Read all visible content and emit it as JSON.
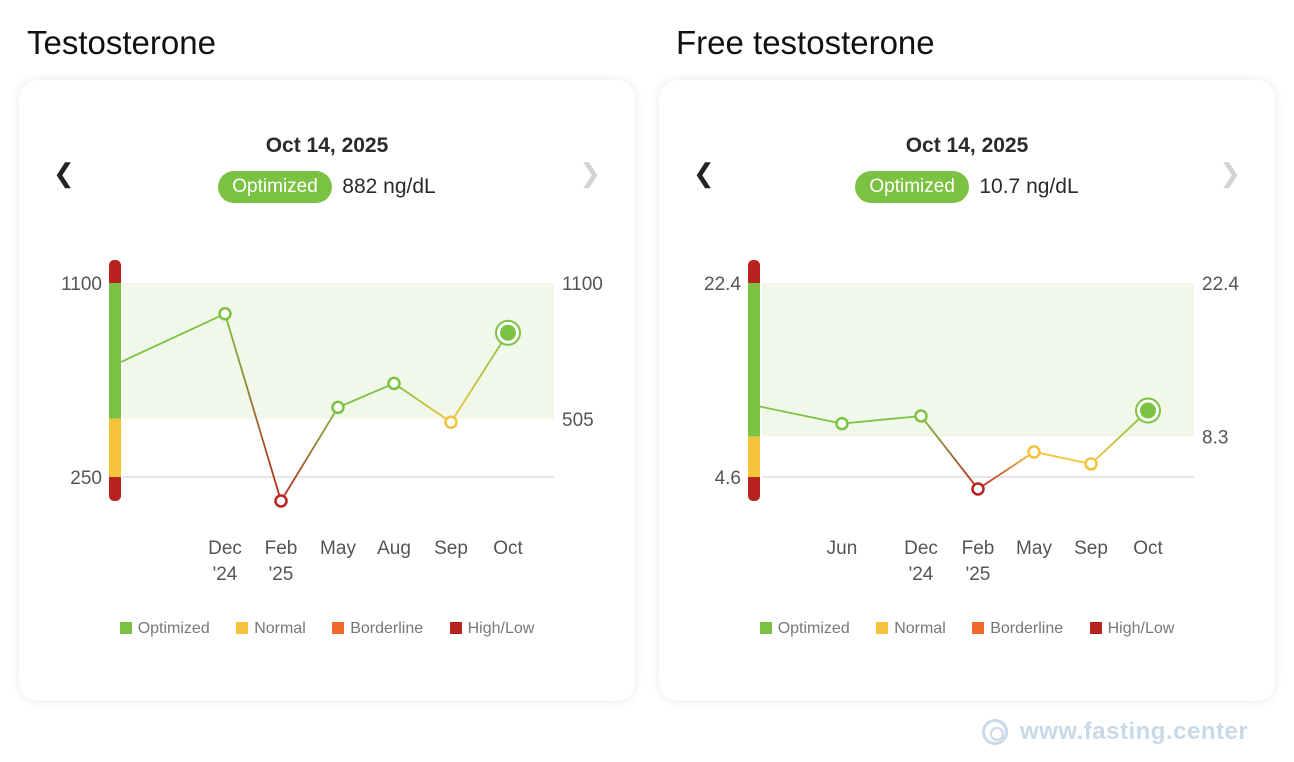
{
  "colors": {
    "optimized": "#7cc242",
    "normal": "#f5c33b",
    "borderline": "#ef6a2a",
    "highlow": "#b8231f",
    "band": "#f1f8ea"
  },
  "legend": [
    {
      "label": "Optimized",
      "color": "#7cc242"
    },
    {
      "label": "Normal",
      "color": "#f5c33b"
    },
    {
      "label": "Borderline",
      "color": "#ef6a2a"
    },
    {
      "label": "High/Low",
      "color": "#b8231f"
    }
  ],
  "watermark": {
    "text": "www.fasting.center",
    "icon": "fasting-center-logo-icon"
  },
  "panels": [
    {
      "title": "Testosterone",
      "date": "Oct 14, 2025",
      "status": "Optimized",
      "reading": "882 ng/dL",
      "prev_icon": "chevron-left-icon",
      "next_icon": "chevron-right-icon"
    },
    {
      "title": "Free testosterone",
      "date": "Oct 14, 2025",
      "status": "Optimized",
      "reading": "10.7 ng/dL",
      "prev_icon": "chevron-left-icon",
      "next_icon": "chevron-right-icon"
    }
  ],
  "chart_data": [
    {
      "type": "line",
      "title": "Testosterone",
      "unit": "ng/dL",
      "ylim": [
        250,
        1100
      ],
      "left_ticks": [
        "1100",
        "250"
      ],
      "right_ticks": [
        "1100",
        "505"
      ],
      "range_bar": {
        "low_highlow_max": 250,
        "normal": [
          250,
          505
        ],
        "optimized": [
          505,
          1100
        ]
      },
      "optimal_band": [
        505,
        1100
      ],
      "series": [
        {
          "points": [
            {
              "label": "",
              "value": 750,
              "status": "optimized",
              "start": true
            },
            {
              "label": "Dec '24",
              "value": 965,
              "status": "optimized"
            },
            {
              "label": "Feb '25",
              "value": 145,
              "status": "highlow"
            },
            {
              "label": "May",
              "value": 555,
              "status": "optimized"
            },
            {
              "label": "Aug",
              "value": 660,
              "status": "optimized"
            },
            {
              "label": "Sep",
              "value": 490,
              "status": "normal"
            },
            {
              "label": "Oct",
              "value": 882,
              "status": "optimized",
              "current": true
            }
          ]
        }
      ],
      "x_labels": [
        "Dec '24",
        "Feb '25",
        "May",
        "Aug",
        "Sep",
        "Oct"
      ]
    },
    {
      "type": "line",
      "title": "Free testosterone",
      "unit": "ng/dL",
      "ylim": [
        4.6,
        22.4
      ],
      "left_ticks": [
        "22.4",
        "4.6"
      ],
      "right_ticks": [
        "22.4",
        "8.3"
      ],
      "range_bar": {
        "low_highlow_max": 4.6,
        "normal": [
          4.6,
          8.3
        ],
        "optimized": [
          8.3,
          22.4
        ]
      },
      "optimal_band": [
        8.3,
        22.4
      ],
      "series": [
        {
          "points": [
            {
              "label": "",
              "value": 11.1,
              "status": "optimized",
              "start": true
            },
            {
              "label": "Jun",
              "value": 9.5,
              "status": "optimized"
            },
            {
              "label": "Dec '24",
              "value": 10.2,
              "status": "optimized"
            },
            {
              "label": "Feb '25",
              "value": 3.5,
              "status": "highlow"
            },
            {
              "label": "May",
              "value": 6.9,
              "status": "normal"
            },
            {
              "label": "Sep",
              "value": 5.8,
              "status": "normal"
            },
            {
              "label": "Oct",
              "value": 10.7,
              "status": "optimized",
              "current": true
            }
          ]
        }
      ],
      "x_labels": [
        "Jun",
        "Dec '24",
        "Feb '25",
        "May",
        "Sep",
        "Oct"
      ]
    }
  ]
}
